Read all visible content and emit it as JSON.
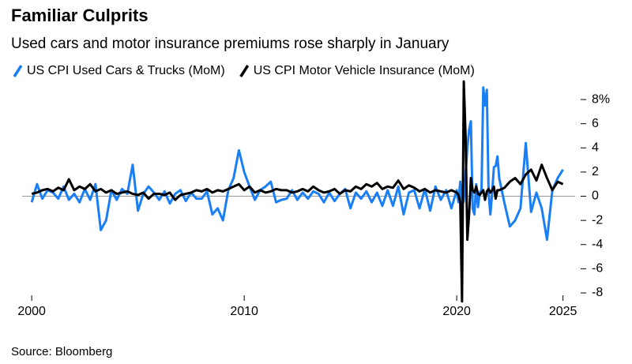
{
  "chart_data": {
    "type": "line",
    "title": "Familiar Culprits",
    "subtitle": "Used cars and motor insurance premiums rose sharply in January",
    "source": "Source: Bloomberg",
    "x": [
      2000,
      2000.25,
      2000.5,
      2000.75,
      2001,
      2001.25,
      2001.5,
      2001.75,
      2002,
      2002.25,
      2002.5,
      2002.75,
      2003,
      2003.25,
      2003.5,
      2003.75,
      2004,
      2004.25,
      2004.5,
      2004.75,
      2005,
      2005.25,
      2005.5,
      2005.75,
      2006,
      2006.25,
      2006.5,
      2006.75,
      2007,
      2007.25,
      2007.5,
      2007.75,
      2008,
      2008.25,
      2008.5,
      2008.75,
      2009,
      2009.25,
      2009.5,
      2009.75,
      2010,
      2010.25,
      2010.5,
      2010.75,
      2011,
      2011.25,
      2011.5,
      2011.75,
      2012,
      2012.25,
      2012.5,
      2012.75,
      2013,
      2013.25,
      2013.5,
      2013.75,
      2014,
      2014.25,
      2014.5,
      2014.75,
      2015,
      2015.25,
      2015.5,
      2015.75,
      2016,
      2016.25,
      2016.5,
      2016.75,
      2017,
      2017.25,
      2017.5,
      2017.75,
      2018,
      2018.25,
      2018.5,
      2018.75,
      2019,
      2019.25,
      2019.5,
      2019.75,
      2020,
      2020.083,
      2020.167,
      2020.25,
      2020.333,
      2020.417,
      2020.5,
      2020.583,
      2020.667,
      2020.75,
      2020.833,
      2020.917,
      2021,
      2021.083,
      2021.167,
      2021.25,
      2021.333,
      2021.417,
      2021.5,
      2021.583,
      2021.667,
      2021.75,
      2021.833,
      2021.917,
      2022,
      2022.25,
      2022.5,
      2022.75,
      2023,
      2023.25,
      2023.5,
      2023.75,
      2024,
      2024.25,
      2024.5,
      2024.75,
      2025
    ],
    "series": [
      {
        "name": "US CPI Used Cars & Trucks (MoM)",
        "color": "#1a7ef5",
        "values": [
          -0.5,
          1.0,
          -0.2,
          0.5,
          0.3,
          -0.2,
          0.8,
          -0.3,
          0.2,
          -0.5,
          0.6,
          -0.3,
          1.0,
          -2.8,
          -2.0,
          0.5,
          -0.3,
          0.6,
          0.2,
          2.6,
          -1.2,
          0.2,
          0.8,
          0.3,
          -0.3,
          0.4,
          -0.6,
          0.2,
          0.5,
          -0.4,
          0.3,
          -0.2,
          -0.2,
          0.4,
          -1.5,
          -1.0,
          -2.0,
          0.5,
          1.5,
          3.8,
          2.0,
          0.8,
          -0.3,
          0.5,
          0.8,
          1.2,
          -0.5,
          -0.3,
          -0.2,
          0.5,
          -0.3,
          0.3,
          -0.2,
          0.4,
          0.2,
          -0.5,
          0.3,
          -0.4,
          0.2,
          0.6,
          -1.0,
          0.3,
          -0.2,
          0.4,
          -0.5,
          0.3,
          -0.8,
          0.5,
          -0.8,
          0.8,
          -1.5,
          0.3,
          0.5,
          -1.0,
          0.6,
          -1.2,
          0.8,
          -0.3,
          0.5,
          -1.0,
          0.5,
          -0.5,
          1.2,
          -0.8,
          -0.4,
          1.8,
          4.0,
          5.5,
          6.2,
          -1.0,
          -1.5,
          1.0,
          -0.9,
          0.3,
          0.5,
          9.0,
          7.5,
          8.8,
          0.3,
          -1.5,
          0.3,
          2.4,
          2.5,
          3.3,
          1.5,
          -0.6,
          -2.5,
          -2.0,
          -1.0,
          4.4,
          -1.3,
          0.3,
          -1.0,
          -3.6,
          0.5,
          1.5,
          2.2
        ]
      },
      {
        "name": "US CPI Motor Vehicle Insurance (MoM)",
        "color": "#000000",
        "values": [
          0.2,
          0.3,
          0.5,
          0.6,
          0.4,
          0.7,
          0.5,
          1.4,
          0.5,
          0.8,
          0.6,
          1.0,
          0.4,
          0.6,
          0.3,
          0.5,
          0.2,
          0.3,
          0.4,
          0.2,
          0.1,
          0.3,
          -0.2,
          0.2,
          0.2,
          0.1,
          0.3,
          -0.3,
          0.1,
          0.2,
          0.3,
          0.5,
          0.4,
          0.6,
          0.3,
          0.5,
          0.4,
          0.6,
          0.8,
          1.0,
          0.5,
          0.8,
          0.3,
          0.5,
          0.3,
          0.4,
          0.6,
          0.5,
          0.5,
          0.3,
          0.4,
          0.6,
          0.4,
          0.8,
          0.5,
          0.3,
          0.4,
          0.6,
          0.2,
          0.5,
          0.4,
          0.8,
          0.6,
          1.0,
          0.8,
          1.1,
          0.6,
          0.8,
          0.7,
          1.3,
          0.6,
          0.9,
          0.7,
          0.4,
          0.6,
          0.3,
          0.5,
          0.4,
          0.3,
          0.5,
          0.3,
          0.1,
          -0.5,
          -8.7,
          9.5,
          5.0,
          -3.6,
          -1.5,
          1.5,
          0.5,
          0.3,
          0.8,
          0.2,
          0.1,
          0.3,
          0.5,
          -0.3,
          0.4,
          0.6,
          0.3,
          0.5,
          0.8,
          -0.2,
          0.5,
          0.5,
          0.7,
          1.2,
          1.5,
          1.0,
          1.8,
          2.2,
          1.3,
          2.6,
          1.5,
          0.5,
          1.2,
          1.0
        ]
      }
    ],
    "xlim": [
      1999.92,
      2025.2
    ],
    "xticks": [
      2000,
      2010,
      2020,
      2025
    ],
    "ylim": [
      -8.85,
      9.44
    ],
    "yticks": [
      {
        "value": 8,
        "label": "8%"
      },
      6,
      4,
      2,
      0,
      -2,
      -4,
      -6,
      -8
    ],
    "grid": false
  }
}
